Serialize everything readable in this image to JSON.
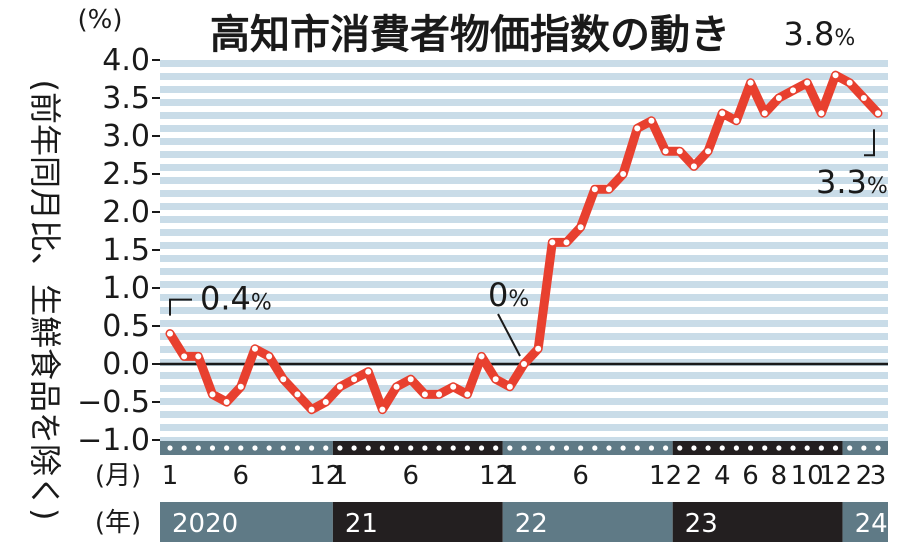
{
  "chart_data": {
    "type": "line",
    "title": "高知市消費者物価指数の動き",
    "y_unit": "(%)",
    "ylabel": "(前年同月比、生鮮食品を除く)",
    "ylim": [
      -1.0,
      4.0
    ],
    "y_ticks": [
      "4.0",
      "3.5",
      "3.0",
      "2.5",
      "2.0",
      "1.5",
      "1.0",
      "0.5",
      "0.0",
      "−0.5",
      "−1.0"
    ],
    "month_row_label": "(月)",
    "year_row_label": "(年)",
    "years": [
      {
        "label": "2020",
        "start": 0,
        "end": 11,
        "band_color": "#5f7a86"
      },
      {
        "label": "21",
        "start": 12,
        "end": 23,
        "band_color": "#231f20"
      },
      {
        "label": "22",
        "start": 24,
        "end": 35,
        "band_color": "#5f7a86"
      },
      {
        "label": "23",
        "start": 36,
        "end": 47,
        "band_color": "#231f20"
      },
      {
        "label": "24",
        "start": 48,
        "end": 50,
        "band_color": "#5f7a86"
      }
    ],
    "month_ticks": [
      {
        "index": 0,
        "label": "1"
      },
      {
        "index": 5,
        "label": "6"
      },
      {
        "index": 11,
        "label": "12"
      },
      {
        "index": 12,
        "label": "1"
      },
      {
        "index": 17,
        "label": "6"
      },
      {
        "index": 23,
        "label": "12"
      },
      {
        "index": 24,
        "label": "1"
      },
      {
        "index": 29,
        "label": "6"
      },
      {
        "index": 35,
        "label": "12"
      },
      {
        "index": 37,
        "label": "2"
      },
      {
        "index": 39,
        "label": "4"
      },
      {
        "index": 41,
        "label": "6"
      },
      {
        "index": 43,
        "label": "8"
      },
      {
        "index": 45,
        "label": "10"
      },
      {
        "index": 47,
        "label": "12"
      },
      {
        "index": 49,
        "label": "2"
      },
      {
        "index": 50,
        "label": "3"
      }
    ],
    "series": [
      {
        "color": "#e8402f",
        "values": [
          0.4,
          0.1,
          0.1,
          -0.4,
          -0.5,
          -0.3,
          0.2,
          0.1,
          -0.2,
          -0.4,
          -0.6,
          -0.5,
          -0.3,
          -0.2,
          -0.1,
          -0.6,
          -0.3,
          -0.2,
          -0.4,
          -0.4,
          -0.3,
          -0.4,
          0.1,
          -0.2,
          -0.3,
          0.0,
          0.2,
          1.6,
          1.6,
          1.8,
          2.3,
          2.3,
          2.5,
          3.1,
          3.2,
          2.8,
          2.8,
          2.6,
          2.8,
          3.3,
          3.2,
          3.7,
          3.3,
          3.5,
          3.6,
          3.7,
          3.3,
          3.8,
          3.7,
          3.5,
          3.3
        ]
      }
    ],
    "annotations": [
      {
        "index": 0,
        "value_text": "0.4",
        "unit_text": "%"
      },
      {
        "index": 25,
        "value_text": "0",
        "unit_text": "%"
      },
      {
        "index": 47,
        "value_text": "3.8",
        "unit_text": "%"
      },
      {
        "index": 50,
        "value_text": "3.3",
        "unit_text": "%"
      }
    ],
    "colors": {
      "stripe": "#c9dce8",
      "line": "#e8402f",
      "point": "#ffffff",
      "zero_line": "#1a1a1a"
    }
  }
}
